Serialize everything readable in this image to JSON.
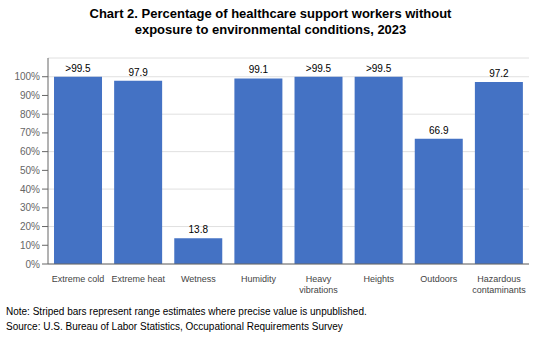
{
  "chart_data": {
    "type": "bar",
    "title": "Chart 2. Percentage of healthcare support workers without\nexposure to environmental conditions, 2023",
    "categories": [
      "Extreme cold",
      "Extreme heat",
      "Wetness",
      "Humidity",
      "Heavy\nvibrations",
      "Heights",
      "Outdoors",
      "Hazardous\ncontaminants"
    ],
    "values": [
      100,
      97.9,
      13.8,
      99.1,
      100,
      100,
      66.9,
      97.2
    ],
    "value_labels": [
      ">99.5",
      "97.9",
      "13.8",
      "99.1",
      ">99.5",
      ">99.5",
      "66.9",
      "97.2"
    ],
    "data_labels": true,
    "color": "#4472C4",
    "ylim": [
      0,
      110
    ],
    "yticks": [
      {
        "value": 0,
        "label": "0%"
      },
      {
        "value": 10,
        "label": "10%"
      },
      {
        "value": 20,
        "label": "20%"
      },
      {
        "value": 30,
        "label": "30%"
      },
      {
        "value": 40,
        "label": "40%"
      },
      {
        "value": 50,
        "label": "50%"
      },
      {
        "value": 60,
        "label": "60%"
      },
      {
        "value": 70,
        "label": "70%"
      },
      {
        "value": 80,
        "label": "80%"
      },
      {
        "value": 90,
        "label": "90%"
      },
      {
        "value": 100,
        "label": "100%"
      }
    ],
    "grid": true,
    "annotations": [
      "Note: Striped bars represent range estimates where precise value is unpublished.",
      "Source: U.S. Bureau of Labor Statistics, Occupational Requirements Survey"
    ]
  }
}
